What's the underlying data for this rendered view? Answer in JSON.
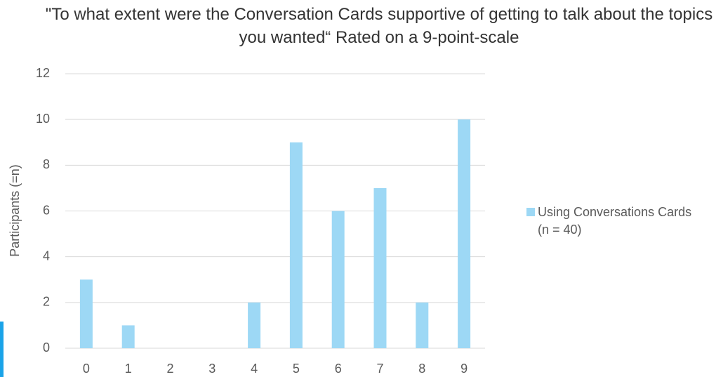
{
  "chart_data": {
    "type": "bar",
    "title": "\"To what extent were the Conversation Cards supportive of getting to talk about the topics you wanted“ Rated on a 9-point-scale",
    "y_label": "Participants (=n)",
    "categories": [
      "0",
      "1",
      "2",
      "3",
      "4",
      "5",
      "6",
      "7",
      "8",
      "9"
    ],
    "series": [
      {
        "name": "Using Conversations Cards (n = 40)",
        "color": "#9dd8f5",
        "values": [
          3,
          1,
          0,
          0,
          2,
          9,
          6,
          7,
          2,
          10
        ]
      }
    ],
    "ylim": [
      0,
      12
    ],
    "yticks": [
      0,
      2,
      4,
      6,
      8,
      10,
      12
    ],
    "grid": true,
    "legend": "right"
  }
}
